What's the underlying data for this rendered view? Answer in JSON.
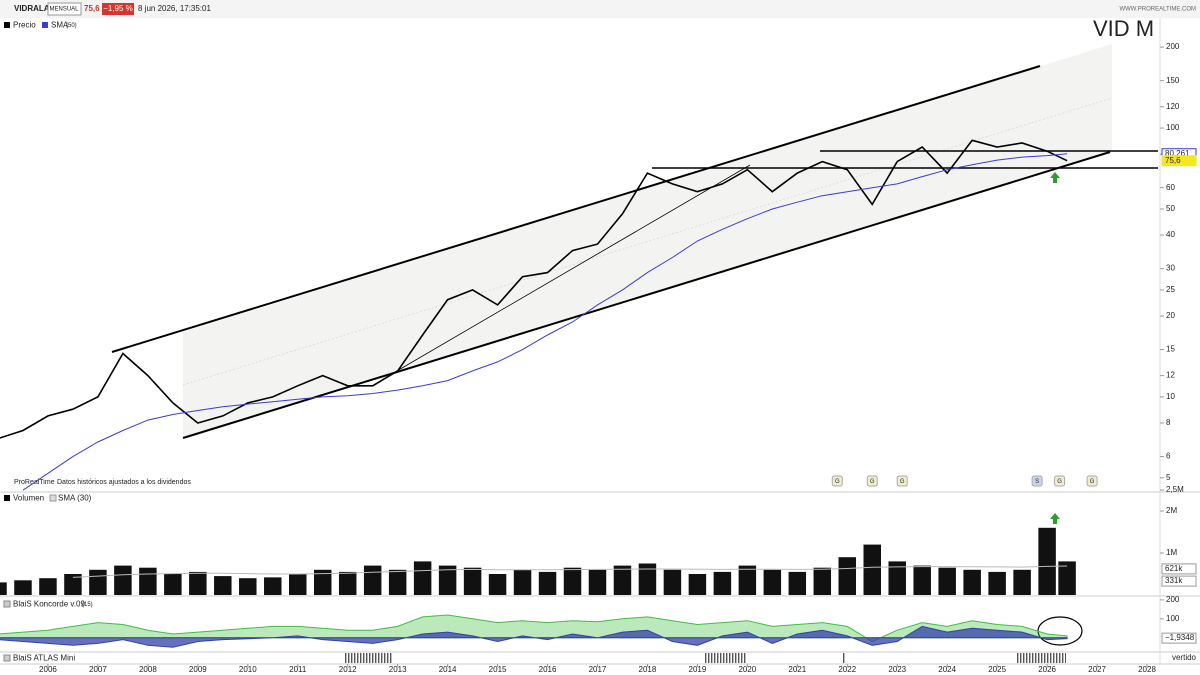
{
  "header": {
    "symbol": "VIDRALA",
    "period": "MENSUAL",
    "price": "75,6",
    "change": "−1,95 %",
    "datetime": "8 jun 2026, 17:35:01",
    "site": "WWW.PROREALTIME.COM",
    "ticker": "VID  M",
    "note_brand": "ProRealTime",
    "note": "Datos históricos ajustados a los dividendos"
  },
  "chart_data": [
    {
      "type": "line",
      "log_scale": true,
      "x": [
        2005.0,
        2005.5,
        2006.0,
        2006.5,
        2007.0,
        2007.5,
        2008.0,
        2008.5,
        2009.0,
        2009.5,
        2010.0,
        2010.5,
        2011.0,
        2011.5,
        2012.0,
        2012.5,
        2013.0,
        2013.5,
        2014.0,
        2014.5,
        2015.0,
        2015.5,
        2016.0,
        2016.5,
        2017.0,
        2017.5,
        2018.0,
        2018.5,
        2019.0,
        2019.5,
        2020.0,
        2020.5,
        2021.0,
        2021.5,
        2022.0,
        2022.5,
        2023.0,
        2023.5,
        2024.0,
        2024.5,
        2025.0,
        2025.5,
        2026.0,
        2026.4
      ],
      "series": [
        {
          "name": "Precio",
          "color": "#000000",
          "values": [
            7,
            7.5,
            8.5,
            9,
            10,
            14.5,
            12,
            9.5,
            8,
            8.5,
            9.5,
            10,
            11,
            12,
            11,
            11,
            12.5,
            17,
            23,
            25,
            22,
            28,
            29,
            35,
            37,
            48,
            68,
            62,
            58,
            62,
            70,
            58,
            68,
            75,
            70,
            52,
            75,
            85,
            68,
            90,
            85,
            88,
            82,
            75.6
          ]
        },
        {
          "name": "SMA",
          "param": "(50)",
          "color": "#3b3bd6",
          "values": [
            null,
            4.5,
            5.2,
            6,
            6.8,
            7.5,
            8.2,
            8.6,
            8.9,
            9.2,
            9.4,
            9.6,
            9.8,
            10,
            10.1,
            10.3,
            10.6,
            11,
            11.5,
            12.5,
            13.5,
            15,
            17,
            19,
            22,
            25,
            29,
            33,
            38,
            42,
            46,
            50,
            53,
            56,
            58,
            60,
            62,
            66,
            70,
            73,
            76,
            78,
            79,
            80.261
          ]
        }
      ],
      "price_tags": [
        {
          "value": 80.261,
          "label": "80,261",
          "color": "#3b3bd6"
        },
        {
          "value": 75.6,
          "label": "75,6",
          "color": "#f5e61e"
        }
      ],
      "xlim": [
        2005.04,
        2028.26
      ],
      "xticks": [
        2006,
        2007,
        2008,
        2009,
        2010,
        2011,
        2012,
        2013,
        2014,
        2015,
        2016,
        2017,
        2018,
        2019,
        2020,
        2021,
        2022,
        2023,
        2024,
        2025,
        2026,
        2027,
        2028
      ],
      "ylim": [
        4.43,
        256.6
      ],
      "yticks": [
        5,
        6,
        8,
        10,
        12,
        15,
        20,
        25,
        30,
        40,
        50,
        60,
        80,
        100,
        120,
        150,
        200
      ]
    },
    {
      "type": "bar",
      "series": [
        {
          "name": "Volumen",
          "color": "#111111",
          "values": [
            300000,
            350000,
            400000,
            500000,
            600000,
            700000,
            650000,
            500000,
            550000,
            450000,
            400000,
            420000,
            500000,
            600000,
            550000,
            700000,
            600000,
            800000,
            700000,
            650000,
            500000,
            600000,
            550000,
            650000,
            600000,
            700000,
            750000,
            600000,
            500000,
            550000,
            700000,
            600000,
            550000,
            650000,
            900000,
            1200000,
            800000,
            700000,
            650000,
            600000,
            550000,
            600000,
            1600000,
            800000
          ]
        },
        {
          "name": "SMA (30)",
          "color": "#bbbbbb",
          "values": [
            null,
            null,
            null,
            420000,
            450000,
            480000,
            500000,
            510000,
            520000,
            520000,
            510000,
            500000,
            500000,
            510000,
            520000,
            540000,
            560000,
            580000,
            600000,
            610000,
            600000,
            600000,
            600000,
            605000,
            610000,
            615000,
            620000,
            620000,
            615000,
            610000,
            615000,
            615000,
            610000,
            615000,
            630000,
            660000,
            670000,
            675000,
            675000,
            672000,
            668000,
            665000,
            680000,
            690000
          ]
        }
      ],
      "tags": [
        {
          "value": 621000,
          "label": "621k"
        },
        {
          "value": 331000,
          "label": "331k"
        }
      ],
      "ylim": [
        0,
        2500000
      ],
      "yticks": [
        {
          "value": 2500000,
          "label": "2,5M"
        },
        {
          "value": 2000000,
          "label": "2M"
        },
        {
          "value": 1000000,
          "label": "1M"
        }
      ]
    },
    {
      "type": "area",
      "title": "BlaiS Koncorde v.09",
      "param": "(15)",
      "series": [
        {
          "name": "Verde",
          "color": "#3fbf3f",
          "values": [
            20,
            30,
            40,
            60,
            80,
            70,
            40,
            20,
            30,
            40,
            50,
            60,
            60,
            50,
            40,
            40,
            60,
            110,
            120,
            100,
            80,
            90,
            80,
            90,
            85,
            100,
            110,
            90,
            70,
            80,
            90,
            60,
            70,
            80,
            60,
            -20,
            40,
            80,
            60,
            90,
            70,
            60,
            20,
            10
          ]
        },
        {
          "name": "Azul",
          "color": "#3340a8",
          "values": [
            -10,
            -20,
            -30,
            -40,
            -30,
            -10,
            -40,
            -50,
            -20,
            -10,
            -5,
            0,
            10,
            -10,
            -20,
            -30,
            -10,
            20,
            30,
            10,
            -20,
            10,
            -10,
            20,
            0,
            30,
            40,
            -20,
            -40,
            10,
            30,
            -30,
            20,
            40,
            10,
            -40,
            -20,
            60,
            30,
            50,
            40,
            30,
            -10,
            -5
          ]
        }
      ],
      "tags": [
        {
          "value": -1.9348,
          "label": "−1,9348"
        }
      ],
      "ylim": [
        -70,
        210
      ],
      "yticks": [
        200,
        100
      ]
    }
  ],
  "badges": [
    {
      "x": 2021.8,
      "label": "G"
    },
    {
      "x": 2022.5,
      "label": "G"
    },
    {
      "x": 2023.1,
      "label": "G"
    },
    {
      "x": 2025.8,
      "label": "S"
    },
    {
      "x": 2026.25,
      "label": "G"
    },
    {
      "x": 2026.9,
      "label": "G"
    }
  ],
  "atlas": {
    "title": "BlaiS ATLAS Mini",
    "tag": "vertido"
  }
}
